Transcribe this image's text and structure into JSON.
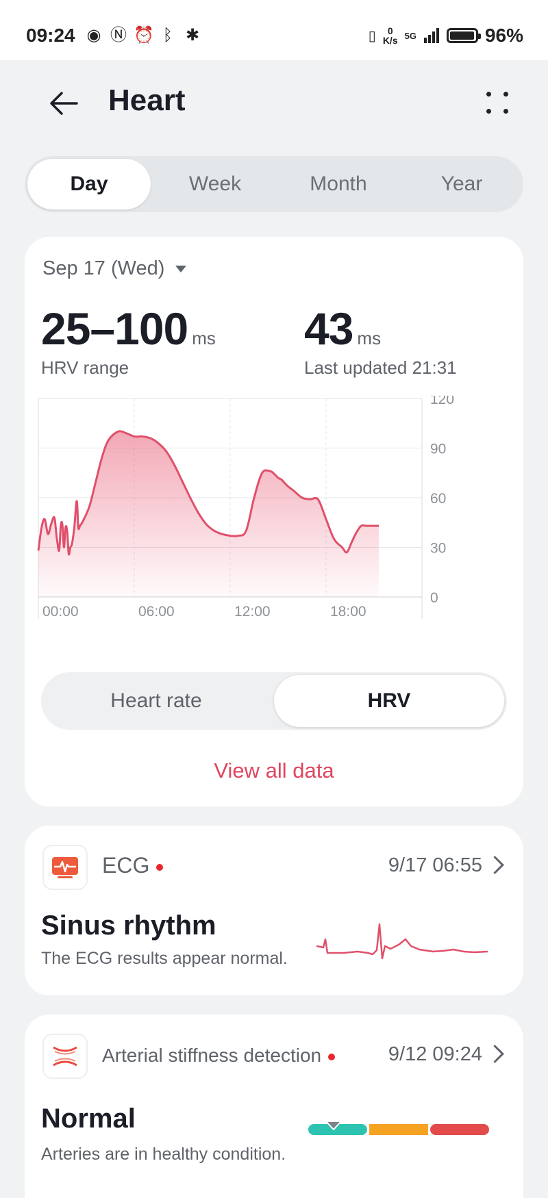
{
  "status": {
    "time": "09:24",
    "net_speed_top": "0",
    "net_speed_unit": "K/s",
    "network": "5G",
    "battery_pct": "96%",
    "battery_level": 0.96
  },
  "header": {
    "title": "Heart"
  },
  "period_tabs": [
    {
      "label": "Day",
      "active": true
    },
    {
      "label": "Week",
      "active": false
    },
    {
      "label": "Month",
      "active": false
    },
    {
      "label": "Year",
      "active": false
    }
  ],
  "hrv_card": {
    "date": "Sep 17 (Wed)",
    "range_value": "25–100",
    "range_unit": "ms",
    "range_label": "HRV range",
    "latest_value": "43",
    "latest_unit": "ms",
    "latest_label": "Last updated 21:31",
    "toggle": [
      {
        "label": "Heart rate",
        "active": false
      },
      {
        "label": "HRV",
        "active": true
      }
    ],
    "view_all": "View all data"
  },
  "chart_data": {
    "type": "area",
    "title": "",
    "xlabel": "",
    "ylabel": "",
    "x_ticks": [
      "00:00",
      "06:00",
      "12:00",
      "18:00"
    ],
    "y_ticks": [
      0,
      30,
      60,
      90,
      120
    ],
    "xlim": [
      0,
      24
    ],
    "ylim": [
      0,
      120
    ],
    "grid": true,
    "color": "#e0506a",
    "series": [
      {
        "x": [
          0.0,
          0.2,
          0.4,
          0.6,
          0.8,
          1.0,
          1.15,
          1.3,
          1.4,
          1.5,
          1.6,
          1.7,
          1.8,
          1.9,
          2.0,
          2.1,
          2.25,
          2.4,
          2.5,
          2.6,
          2.8,
          3.2,
          3.6,
          4.0,
          4.4,
          5.0,
          5.5,
          6.0,
          6.5,
          7.0,
          7.5,
          8.0,
          8.5,
          9.0,
          9.5,
          10.0,
          10.5,
          11.0,
          11.5,
          12.0,
          12.5,
          13.0,
          13.5,
          14.0,
          14.5,
          14.8,
          15.0,
          15.2,
          15.4,
          15.6,
          16.0,
          16.5,
          17.0,
          17.5,
          18.0,
          18.5,
          19.0,
          19.3,
          19.6,
          19.9,
          20.2,
          20.5,
          20.8,
          21.0,
          21.3
        ],
        "y": [
          28,
          42,
          47,
          38,
          44,
          48,
          36,
          28,
          43,
          44,
          30,
          42,
          40,
          26,
          30,
          32,
          42,
          58,
          42,
          43,
          46,
          55,
          70,
          85,
          95,
          100,
          99,
          97,
          97,
          96,
          93,
          88,
          80,
          70,
          60,
          51,
          44,
          40,
          38,
          37,
          37,
          40,
          60,
          75,
          76,
          74,
          72,
          71,
          69,
          67,
          64,
          60,
          59,
          59,
          47,
          35,
          30,
          27,
          33,
          39,
          43,
          43,
          43,
          43,
          43
        ]
      }
    ]
  },
  "ecg_card": {
    "title": "ECG",
    "datetime": "9/17 06:55",
    "result": "Sinus rhythm",
    "description": "The ECG results appear normal."
  },
  "arterial_card": {
    "title": "Arterial stiffness detection",
    "datetime": "9/12 09:24",
    "result": "Normal",
    "description": "Arteries are in healthy condition.",
    "gauge_level": 0.14,
    "gauge_colors": [
      "#2cc3b0",
      "#f6a324",
      "#e34a4a"
    ]
  }
}
